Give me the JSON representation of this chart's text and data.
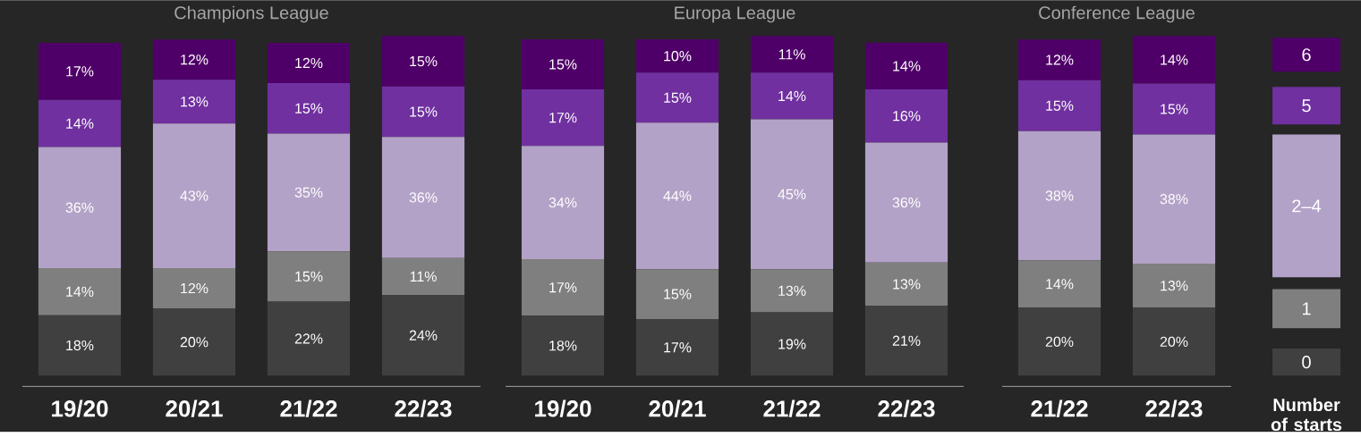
{
  "chart_data": [
    {
      "type": "bar",
      "stacked": true,
      "title": "Champions League",
      "categories": [
        "19/20",
        "20/21",
        "21/22",
        "22/23"
      ],
      "tick_labels": "x",
      "legend": false,
      "series": [
        {
          "color": "#404040",
          "values": [
            18,
            20,
            22,
            24
          ],
          "value_labels": [
            "18%",
            "20%",
            "22%",
            "24%"
          ]
        },
        {
          "color": "#7f7f7f",
          "values": [
            14,
            12,
            15,
            11
          ],
          "value_labels": [
            "14%",
            "12%",
            "15%",
            "11%"
          ]
        },
        {
          "color": "#b3a2c7",
          "values": [
            36,
            43,
            35,
            36
          ],
          "value_labels": [
            "36%",
            "43%",
            "35%",
            "36%"
          ]
        },
        {
          "color": "#7030a0",
          "values": [
            14,
            13,
            15,
            15
          ],
          "value_labels": [
            "14%",
            "13%",
            "15%",
            "15%"
          ]
        },
        {
          "color": "#4f0068",
          "values": [
            17,
            12,
            12,
            15
          ],
          "value_labels": [
            "17%",
            "12%",
            "12%",
            "15%"
          ]
        }
      ]
    },
    {
      "type": "bar",
      "stacked": true,
      "title": "Europa League",
      "categories": [
        "19/20",
        "20/21",
        "21/22",
        "22/23"
      ],
      "tick_labels": "x",
      "legend": false,
      "series": [
        {
          "color": "#404040",
          "values": [
            18,
            17,
            19,
            21
          ],
          "value_labels": [
            "18%",
            "17%",
            "19%",
            "21%"
          ]
        },
        {
          "color": "#7f7f7f",
          "values": [
            17,
            15,
            13,
            13
          ],
          "value_labels": [
            "17%",
            "15%",
            "13%",
            "13%"
          ]
        },
        {
          "color": "#b3a2c7",
          "values": [
            34,
            44,
            45,
            36
          ],
          "value_labels": [
            "34%",
            "44%",
            "45%",
            "36%"
          ]
        },
        {
          "color": "#7030a0",
          "values": [
            17,
            15,
            14,
            16
          ],
          "value_labels": [
            "17%",
            "15%",
            "14%",
            "16%"
          ]
        },
        {
          "color": "#4f0068",
          "values": [
            15,
            10,
            11,
            14
          ],
          "value_labels": [
            "15%",
            "10%",
            "11%",
            "14%"
          ]
        }
      ]
    },
    {
      "type": "bar",
      "stacked": true,
      "title": "Conference League",
      "categories": [
        "21/22",
        "22/23"
      ],
      "tick_labels": "x",
      "legend": "right",
      "legend_title": "Number of starts",
      "series": [
        {
          "name": "0",
          "color": "#404040",
          "values": [
            20,
            20
          ],
          "value_labels": [
            "20%",
            "20%"
          ]
        },
        {
          "name": "1",
          "color": "#7f7f7f",
          "values": [
            14,
            13
          ],
          "value_labels": [
            "14%",
            "13%"
          ]
        },
        {
          "name": "2–4",
          "color": "#b3a2c7",
          "values": [
            38,
            38
          ],
          "value_labels": [
            "38%",
            "38%"
          ]
        },
        {
          "name": "5",
          "color": "#7030a0",
          "values": [
            15,
            15
          ],
          "value_labels": [
            "15%",
            "15%"
          ]
        },
        {
          "name": "6",
          "color": "#4f0068",
          "values": [
            12,
            14
          ],
          "value_labels": [
            "12%",
            "14%"
          ]
        }
      ]
    }
  ]
}
